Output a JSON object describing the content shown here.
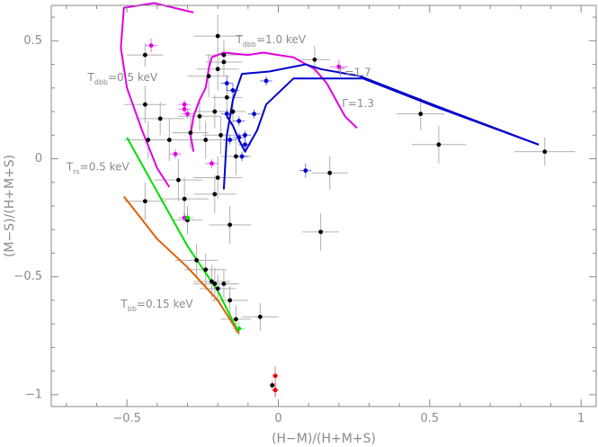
{
  "chart_data": {
    "type": "scatter",
    "xlabel": "(H−M)/(H+M+S)",
    "ylabel": "(M−S)/(H+M+S)",
    "xlim": [
      -0.75,
      1.05
    ],
    "ylim": [
      -1.05,
      0.65
    ],
    "x_ticks": [
      -0.5,
      0,
      0.5,
      1
    ],
    "x_tick_labels": [
      "−0.5",
      "0",
      "0.5",
      "1"
    ],
    "y_ticks": [
      -1,
      -0.5,
      0,
      0.5
    ],
    "y_tick_labels": [
      "−1",
      "−0.5",
      "0",
      "0.5"
    ],
    "grid": false,
    "colors": {
      "axis": "#8a8a8a",
      "black_points": "#000000",
      "errorbar": "#b0b0b0",
      "magenta": "#e000e0",
      "blue": "#0000cc",
      "green": "#00dd00",
      "orange": "#e06000",
      "red": "#ee0000"
    },
    "annotations": [
      {
        "id": "tdbb1",
        "main": "T",
        "sub": "dbb",
        "rest": "=1.0 keV",
        "x": -0.14,
        "y": 0.49
      },
      {
        "id": "tdbb05",
        "main": "T",
        "sub": "dbb",
        "rest": "=0.5 keV",
        "x": -0.63,
        "y": 0.33
      },
      {
        "id": "gamma17",
        "main": "Γ=1.7",
        "sub": "",
        "rest": "",
        "x": 0.2,
        "y": 0.35
      },
      {
        "id": "gamma13",
        "main": "Γ=1.3",
        "sub": "",
        "rest": "",
        "x": 0.21,
        "y": 0.22
      },
      {
        "id": "trs",
        "main": "T",
        "sub": "rs",
        "rest": "=0.5 keV",
        "x": -0.7,
        "y": -0.05
      },
      {
        "id": "tbb",
        "main": "T",
        "sub": "bb",
        "rest": "=0.15 keV",
        "x": -0.52,
        "y": -0.63
      }
    ],
    "model_curves": [
      {
        "id": "magenta-dbb",
        "color": "#e000e0",
        "points": [
          [
            -0.28,
            0.62
          ],
          [
            -0.41,
            0.66
          ],
          [
            -0.51,
            0.64
          ],
          [
            -0.52,
            0.47
          ],
          [
            -0.5,
            0.3
          ],
          [
            -0.45,
            0.12
          ],
          [
            -0.4,
            -0.04
          ],
          [
            -0.36,
            -0.12
          ]
        ]
      },
      {
        "id": "magenta-main",
        "color": "#e000e0",
        "points": [
          [
            -0.28,
            0.03
          ],
          [
            -0.29,
            0.1
          ],
          [
            -0.28,
            0.18
          ],
          [
            -0.26,
            0.25
          ],
          [
            -0.24,
            0.3
          ],
          [
            -0.23,
            0.38
          ],
          [
            -0.22,
            0.43
          ],
          [
            -0.18,
            0.45
          ],
          [
            -0.1,
            0.44
          ],
          [
            -0.05,
            0.45
          ],
          [
            0.05,
            0.43
          ],
          [
            0.12,
            0.38
          ],
          [
            0.16,
            0.32
          ],
          [
            0.22,
            0.18
          ],
          [
            0.26,
            0.13
          ]
        ]
      },
      {
        "id": "blue-g17",
        "color": "#0000cc",
        "points": [
          [
            -0.18,
            -0.13
          ],
          [
            -0.17,
            0.1
          ],
          [
            -0.15,
            0.25
          ],
          [
            -0.12,
            0.36
          ],
          [
            -0.03,
            0.37
          ],
          [
            0.09,
            0.4
          ],
          [
            0.14,
            0.38
          ],
          [
            0.27,
            0.35
          ],
          [
            0.53,
            0.22
          ],
          [
            0.86,
            0.06
          ]
        ]
      },
      {
        "id": "blue-g13",
        "color": "#0000cc",
        "points": [
          [
            -0.17,
            0.18
          ],
          [
            -0.15,
            0.14
          ],
          [
            -0.13,
            0.08
          ],
          [
            -0.11,
            0.03
          ],
          [
            -0.07,
            0.12
          ],
          [
            -0.04,
            0.23
          ],
          [
            0.05,
            0.34
          ],
          [
            0.28,
            0.34
          ],
          [
            0.52,
            0.22
          ],
          [
            0.86,
            0.06
          ]
        ]
      },
      {
        "id": "green-rs",
        "color": "#00dd00",
        "points": [
          [
            -0.5,
            0.09
          ],
          [
            -0.4,
            -0.14
          ],
          [
            -0.3,
            -0.37
          ],
          [
            -0.2,
            -0.56
          ],
          [
            -0.13,
            -0.74
          ]
        ]
      },
      {
        "id": "orange-bb",
        "color": "#e06000",
        "points": [
          [
            -0.51,
            -0.16
          ],
          [
            -0.4,
            -0.34
          ],
          [
            -0.3,
            -0.46
          ],
          [
            -0.2,
            -0.6
          ],
          [
            -0.13,
            -0.74
          ]
        ]
      }
    ],
    "series": [
      {
        "name": "",
        "color": "#000000",
        "points": [
          [
            -0.44,
            0.44,
            0.06,
            0.05
          ],
          [
            -0.2,
            0.52,
            0.08,
            0.09
          ],
          [
            -0.18,
            0.44,
            0.06,
            0.06
          ],
          [
            -0.2,
            0.38,
            0.07,
            0.09
          ],
          [
            -0.23,
            0.35,
            0.07,
            0.09
          ],
          [
            -0.18,
            0.41,
            0.06,
            0.06
          ],
          [
            -0.39,
            0.17,
            0.08,
            0.07
          ],
          [
            -0.44,
            0.23,
            0.07,
            0.08
          ],
          [
            -0.26,
            0.18,
            0.07,
            0.06
          ],
          [
            -0.21,
            0.2,
            0.07,
            0.07
          ],
          [
            -0.17,
            0.26,
            0.05,
            0.07
          ],
          [
            -0.15,
            0.2,
            0.04,
            0.05
          ],
          [
            -0.43,
            0.08,
            0.08,
            0.08
          ],
          [
            -0.36,
            0.08,
            0.08,
            0.09
          ],
          [
            -0.29,
            0.11,
            0.06,
            0.07
          ],
          [
            -0.24,
            0.08,
            0.07,
            0.08
          ],
          [
            -0.19,
            0.1,
            0.06,
            0.08
          ],
          [
            -0.14,
            0.01,
            0.05,
            0.08
          ],
          [
            -0.33,
            -0.09,
            0.08,
            0.09
          ],
          [
            -0.2,
            -0.08,
            0.08,
            0.09
          ],
          [
            -0.44,
            -0.18,
            0.07,
            0.08
          ],
          [
            -0.31,
            -0.17,
            0.08,
            0.09
          ],
          [
            -0.21,
            -0.15,
            0.07,
            0.08
          ],
          [
            -0.16,
            -0.28,
            0.07,
            0.08
          ],
          [
            -0.3,
            -0.26,
            0.05,
            0.06
          ],
          [
            -0.27,
            -0.43,
            0.07,
            0.07
          ],
          [
            -0.24,
            -0.47,
            0.07,
            0.07
          ],
          [
            -0.22,
            -0.52,
            0.06,
            0.07
          ],
          [
            -0.21,
            -0.53,
            0.07,
            0.07
          ],
          [
            -0.2,
            -0.55,
            0.06,
            0.06
          ],
          [
            -0.18,
            -0.53,
            0.05,
            0.06
          ],
          [
            -0.16,
            -0.6,
            0.06,
            0.06
          ],
          [
            -0.14,
            -0.68,
            0.05,
            0.06
          ],
          [
            -0.06,
            -0.67,
            0.06,
            0.06
          ],
          [
            0.47,
            0.19,
            0.08,
            0.07
          ],
          [
            0.53,
            0.06,
            0.09,
            0.08
          ],
          [
            0.88,
            0.03,
            0.1,
            0.06
          ],
          [
            0.12,
            0.42,
            0.05,
            0.06
          ],
          [
            0.17,
            -0.06,
            0.06,
            0.07
          ],
          [
            0.14,
            -0.31,
            0.06,
            0.08
          ],
          [
            -0.02,
            -0.96,
            0.01,
            0.02
          ],
          [
            -0.01,
            -0.98,
            0.01,
            0.03
          ]
        ]
      },
      {
        "name": "",
        "color": "#e000e0",
        "points": [
          [
            -0.42,
            0.48,
            0.02,
            0.03
          ],
          [
            -0.31,
            0.23,
            0.02,
            0.02
          ],
          [
            -0.31,
            0.21,
            0.02,
            0.02
          ],
          [
            -0.3,
            0.19,
            0.02,
            0.02
          ],
          [
            -0.34,
            0.02,
            0.02,
            0.02
          ],
          [
            -0.22,
            -0.02,
            0.02,
            0.02
          ],
          [
            0.2,
            0.39,
            0.03,
            0.03
          ],
          [
            -0.31,
            -0.25,
            0.02,
            0.02
          ]
        ]
      },
      {
        "name": "",
        "color": "#0000cc",
        "points": [
          [
            -0.17,
            0.32,
            0.02,
            0.03
          ],
          [
            -0.15,
            0.29,
            0.02,
            0.03
          ],
          [
            -0.17,
            0.19,
            0.02,
            0.02
          ],
          [
            -0.13,
            0.16,
            0.02,
            0.02
          ],
          [
            -0.11,
            0.1,
            0.02,
            0.02
          ],
          [
            -0.13,
            0.09,
            0.02,
            0.02
          ],
          [
            -0.16,
            0.08,
            0.02,
            0.02
          ],
          [
            -0.11,
            0.06,
            0.02,
            0.02
          ],
          [
            -0.08,
            0.19,
            0.02,
            0.02
          ],
          [
            -0.04,
            0.33,
            0.02,
            0.02
          ],
          [
            -0.12,
            0.01,
            0.02,
            0.02
          ],
          [
            0.09,
            -0.05,
            0.02,
            0.03
          ]
        ]
      },
      {
        "name": "",
        "color": "#00dd00",
        "points": [
          [
            -0.3,
            -0.25,
            0.02,
            0.02
          ],
          [
            -0.13,
            -0.72,
            0.02,
            0.03
          ]
        ]
      },
      {
        "name": "",
        "color": "#ee0000",
        "points": [
          [
            -0.01,
            -0.92,
            0.01,
            0.04
          ],
          [
            -0.01,
            -0.98,
            0.01,
            0.03
          ]
        ]
      }
    ]
  }
}
